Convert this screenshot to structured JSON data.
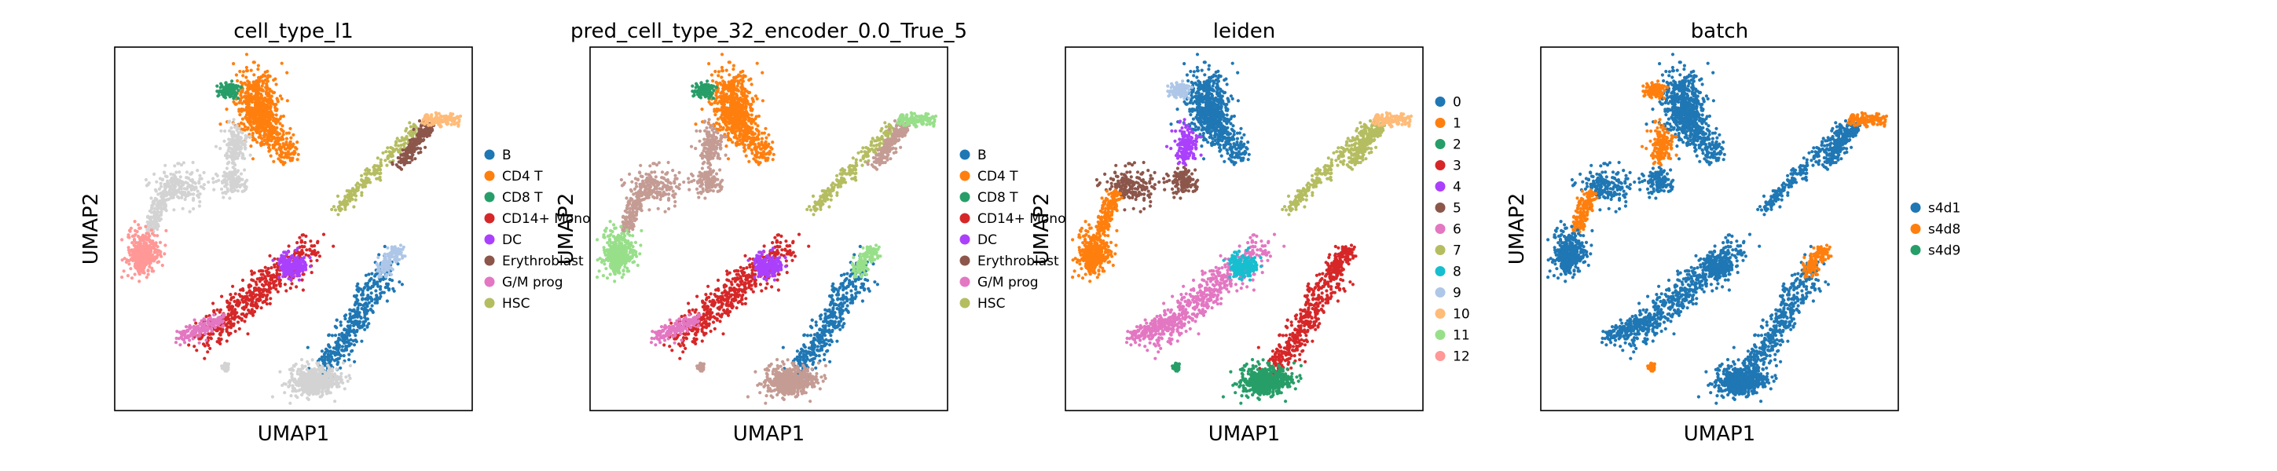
{
  "chart_data": [
    {
      "type": "scatter",
      "title": "cell_type_l1",
      "xlabel": "UMAP1",
      "ylabel": "UMAP2",
      "grid": false,
      "legend": {
        "placement": "right",
        "entries": [
          {
            "label": "B",
            "color": "#1f77b4"
          },
          {
            "label": "CD4 T",
            "color": "#ff7f0e"
          },
          {
            "label": "CD8 T",
            "color": "#279e68"
          },
          {
            "label": "CD14+ Mono",
            "color": "#d62728"
          },
          {
            "label": "DC",
            "color": "#aa40fc"
          },
          {
            "label": "Erythroblast",
            "color": "#8c564b"
          },
          {
            "label": "G/M prog",
            "color": "#e377c2"
          },
          {
            "label": "HSC",
            "color": "#b5bd61"
          }
        ]
      }
    },
    {
      "type": "scatter",
      "title": "pred_cell_type_32_encoder_0.0_True_5",
      "xlabel": "UMAP1",
      "ylabel": "UMAP2",
      "grid": false,
      "legend": {
        "placement": "right",
        "entries": [
          {
            "label": "B",
            "color": "#1f77b4"
          },
          {
            "label": "CD4 T",
            "color": "#ff7f0e"
          },
          {
            "label": "CD8 T",
            "color": "#279e68"
          },
          {
            "label": "CD14+ Mono",
            "color": "#d62728"
          },
          {
            "label": "DC",
            "color": "#aa40fc"
          },
          {
            "label": "Erythroblast",
            "color": "#8c564b"
          },
          {
            "label": "G/M prog",
            "color": "#e377c2"
          },
          {
            "label": "HSC",
            "color": "#b5bd61"
          }
        ]
      }
    },
    {
      "type": "scatter",
      "title": "leiden",
      "xlabel": "UMAP1",
      "ylabel": "UMAP2",
      "grid": false,
      "legend": {
        "placement": "right",
        "entries": [
          {
            "label": "0",
            "color": "#1f77b4"
          },
          {
            "label": "1",
            "color": "#ff7f0e"
          },
          {
            "label": "2",
            "color": "#279e68"
          },
          {
            "label": "3",
            "color": "#d62728"
          },
          {
            "label": "4",
            "color": "#aa40fc"
          },
          {
            "label": "5",
            "color": "#8c564b"
          },
          {
            "label": "6",
            "color": "#e377c2"
          },
          {
            "label": "7",
            "color": "#b5bd61"
          },
          {
            "label": "8",
            "color": "#17becf"
          },
          {
            "label": "9",
            "color": "#aec7e8"
          },
          {
            "label": "10",
            "color": "#ffbb78"
          },
          {
            "label": "11",
            "color": "#98df8a"
          },
          {
            "label": "12",
            "color": "#ff9896"
          }
        ]
      }
    },
    {
      "type": "scatter",
      "title": "batch",
      "xlabel": "UMAP1",
      "ylabel": "UMAP2",
      "grid": false,
      "legend": {
        "placement": "right",
        "entries": [
          {
            "label": "s4d1",
            "color": "#1f77b4"
          },
          {
            "label": "s4d8",
            "color": "#ff7f0e"
          },
          {
            "label": "s4d9",
            "color": "#279e68"
          }
        ]
      }
    }
  ]
}
